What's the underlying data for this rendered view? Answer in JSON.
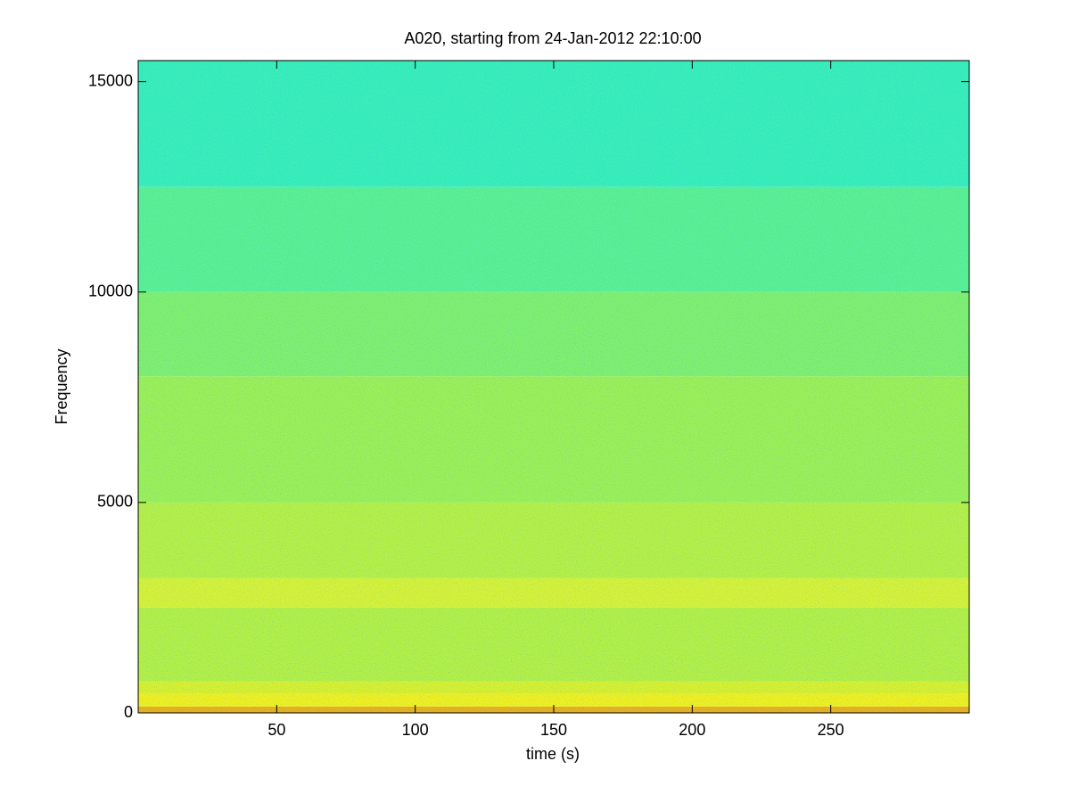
{
  "chart_data": {
    "type": "spectrogram",
    "title": "A020, starting from 24-Jan-2012 22:10:00",
    "xlabel": "time (s)",
    "ylabel": "Frequency",
    "xlim": [
      0,
      300
    ],
    "xticks": [
      50,
      100,
      150,
      200,
      250
    ],
    "ylim": [
      0,
      15500
    ],
    "yticks": [
      0,
      5000,
      10000,
      15000
    ],
    "bands": [
      {
        "from": 0,
        "to": 150,
        "color": "#e8b020"
      },
      {
        "from": 150,
        "to": 450,
        "color": "#f0f020"
      },
      {
        "from": 450,
        "to": 750,
        "color": "#d8f030"
      },
      {
        "from": 750,
        "to": 2500,
        "color": "#b4f048"
      },
      {
        "from": 2500,
        "to": 3200,
        "color": "#d6f238"
      },
      {
        "from": 3200,
        "to": 5000,
        "color": "#b6f048"
      },
      {
        "from": 5000,
        "to": 8000,
        "color": "#9cf058"
      },
      {
        "from": 8000,
        "to": 10000,
        "color": "#80f070"
      },
      {
        "from": 10000,
        "to": 12500,
        "color": "#5cf094"
      },
      {
        "from": 12500,
        "to": 15500,
        "color": "#3aeeba"
      }
    ]
  }
}
